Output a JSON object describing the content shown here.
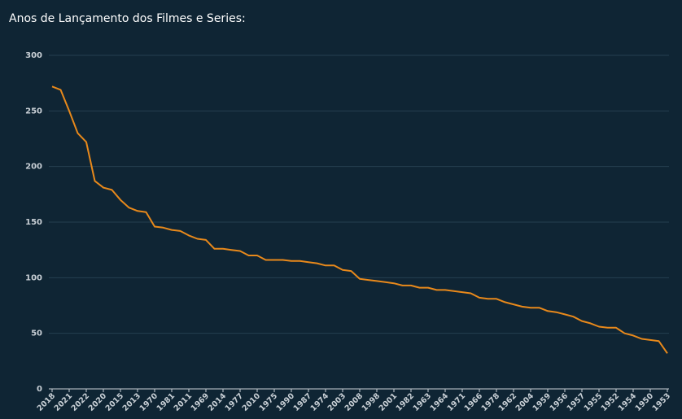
{
  "chart_data": {
    "type": "line",
    "title": "Anos de Lançamento dos Filmes e Series:",
    "categories": [
      "2018",
      null,
      "2021",
      null,
      "2022",
      null,
      "2020",
      null,
      "2015",
      null,
      "2013",
      null,
      "1970",
      null,
      "1981",
      null,
      "2011",
      null,
      "1969",
      null,
      "2014",
      null,
      "1977",
      null,
      "2010",
      null,
      "1975",
      null,
      "1990",
      null,
      "1987",
      null,
      "1974",
      null,
      "2003",
      null,
      "2008",
      null,
      "1998",
      null,
      "2001",
      null,
      "1982",
      null,
      "1963",
      null,
      "1964",
      null,
      "1971",
      null,
      "1966",
      null,
      "1978",
      null,
      "1962",
      null,
      "2004",
      null,
      "1959",
      null,
      "1956",
      null,
      "1957",
      null,
      "1955",
      null,
      "1952",
      null,
      "1954",
      null,
      "1950",
      null,
      "1953"
    ],
    "values": [
      272,
      269,
      250,
      230,
      222,
      187,
      181,
      179,
      170,
      163,
      160,
      159,
      146,
      145,
      143,
      142,
      138,
      135,
      134,
      126,
      126,
      125,
      124,
      120,
      120,
      116,
      116,
      116,
      115,
      115,
      114,
      113,
      111,
      111,
      107,
      106,
      99,
      98,
      97,
      96,
      95,
      93,
      93,
      91,
      91,
      89,
      89,
      88,
      87,
      86,
      82,
      81,
      81,
      78,
      76,
      74,
      73,
      73,
      70,
      69,
      67,
      65,
      61,
      59,
      56,
      55,
      55,
      50,
      48,
      45,
      44,
      43,
      32
    ],
    "color": "#e8891b",
    "ylim": [
      0,
      300
    ],
    "yticks": [
      0,
      50,
      100,
      150,
      200,
      250,
      300
    ],
    "grid": true
  }
}
